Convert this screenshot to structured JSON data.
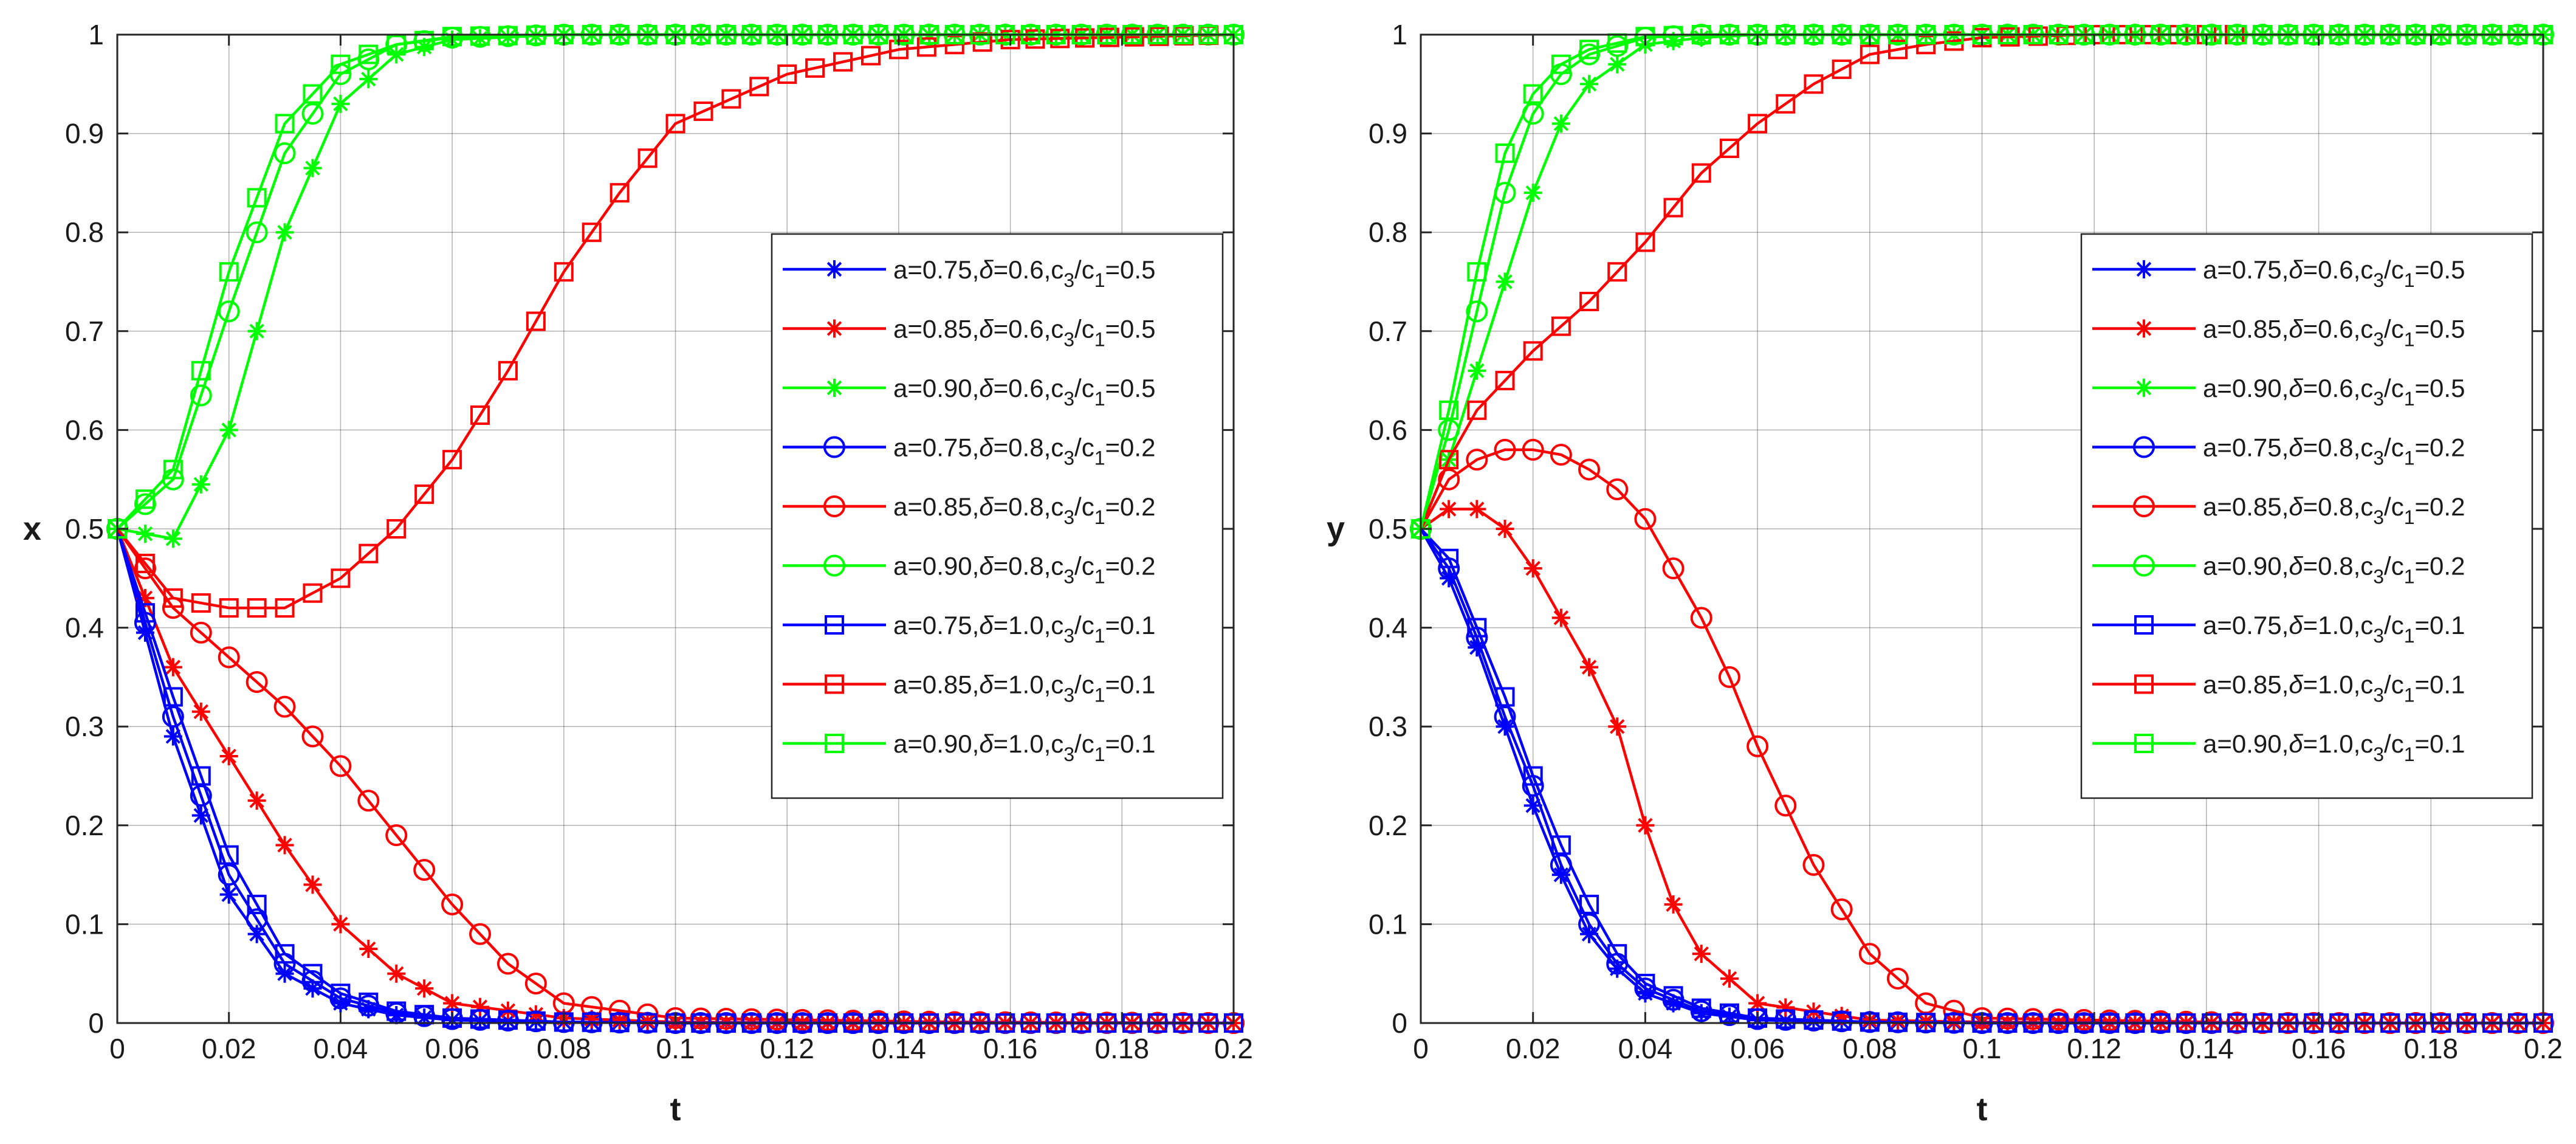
{
  "chart_data": [
    {
      "type": "line",
      "title": "",
      "xlabel": "t",
      "ylabel": "x",
      "xlim": [
        0,
        0.2
      ],
      "ylim": [
        0,
        1
      ],
      "xticks": [
        0,
        0.02,
        0.04,
        0.06,
        0.08,
        0.1,
        0.12,
        0.14,
        0.16,
        0.18,
        0.2
      ],
      "yticks": [
        0,
        0.1,
        0.2,
        0.3,
        0.4,
        0.5,
        0.6,
        0.7,
        0.8,
        0.9,
        1
      ],
      "xtick_labels": [
        "0",
        "0.02",
        "0.04",
        "0.06",
        "0.08",
        "0.1",
        "0.12",
        "0.14",
        "0.16",
        "0.18",
        "0.2"
      ],
      "ytick_labels": [
        "0",
        "0.1",
        "0.2",
        "0.3",
        "0.4",
        "0.5",
        "0.6",
        "0.7",
        "0.8",
        "0.9",
        "1"
      ],
      "grid": true,
      "legend_position": "middle-right",
      "series": [
        {
          "name": "a=0.75,δ=0.6,c3/c1=0.5",
          "a": "0.75",
          "delta": "0.6",
          "ratio": "0.5",
          "color": "#0000ff",
          "marker": "star",
          "x": [
            0,
            0.01,
            0.02,
            0.03,
            0.04,
            0.05,
            0.06,
            0.08,
            0.1,
            0.15,
            0.2
          ],
          "y": [
            0.5,
            0.29,
            0.13,
            0.05,
            0.02,
            0.008,
            0.003,
            0.001,
            0,
            0,
            0
          ]
        },
        {
          "name": "a=0.85,δ=0.6,c3/c1=0.5",
          "a": "0.85",
          "delta": "0.6",
          "ratio": "0.5",
          "color": "#ff0000",
          "marker": "star",
          "x": [
            0,
            0.01,
            0.02,
            0.03,
            0.04,
            0.05,
            0.06,
            0.08,
            0.1,
            0.15,
            0.2
          ],
          "y": [
            0.5,
            0.36,
            0.27,
            0.18,
            0.1,
            0.05,
            0.02,
            0.005,
            0.001,
            0,
            0
          ]
        },
        {
          "name": "a=0.90,δ=0.6,c3/c1=0.5",
          "a": "0.90",
          "delta": "0.6",
          "ratio": "0.5",
          "color": "#00ff00",
          "marker": "star",
          "x": [
            0,
            0.01,
            0.02,
            0.03,
            0.04,
            0.05,
            0.06,
            0.08,
            0.1,
            0.15,
            0.2
          ],
          "y": [
            0.5,
            0.49,
            0.6,
            0.8,
            0.93,
            0.98,
            0.995,
            1,
            1,
            1,
            1
          ]
        },
        {
          "name": "a=0.75,δ=0.8,c3/c1=0.2",
          "a": "0.75",
          "delta": "0.8",
          "ratio": "0.2",
          "color": "#0000ff",
          "marker": "circle",
          "x": [
            0,
            0.01,
            0.02,
            0.03,
            0.04,
            0.05,
            0.06,
            0.08,
            0.1,
            0.15,
            0.2
          ],
          "y": [
            0.5,
            0.31,
            0.15,
            0.06,
            0.025,
            0.01,
            0.004,
            0.001,
            0,
            0,
            0
          ]
        },
        {
          "name": "a=0.85,δ=0.8,c3/c1=0.2",
          "a": "0.85",
          "delta": "0.8",
          "ratio": "0.2",
          "color": "#ff0000",
          "marker": "circle",
          "x": [
            0,
            0.01,
            0.02,
            0.03,
            0.04,
            0.05,
            0.06,
            0.07,
            0.08,
            0.1,
            0.15,
            0.2
          ],
          "y": [
            0.5,
            0.42,
            0.37,
            0.32,
            0.26,
            0.19,
            0.12,
            0.06,
            0.02,
            0.005,
            0.001,
            0
          ]
        },
        {
          "name": "a=0.90,δ=0.8,c3/c1=0.2",
          "a": "0.90",
          "delta": "0.8",
          "ratio": "0.2",
          "color": "#00ff00",
          "marker": "circle",
          "x": [
            0,
            0.01,
            0.02,
            0.03,
            0.04,
            0.05,
            0.06,
            0.08,
            0.1,
            0.15,
            0.2
          ],
          "y": [
            0.5,
            0.55,
            0.72,
            0.88,
            0.96,
            0.99,
            0.997,
            1,
            1,
            1,
            1
          ]
        },
        {
          "name": "a=0.75,δ=1.0,c3/c1=0.1",
          "a": "0.75",
          "delta": "1.0",
          "ratio": "0.1",
          "color": "#0000ff",
          "marker": "square",
          "x": [
            0,
            0.01,
            0.02,
            0.03,
            0.04,
            0.05,
            0.06,
            0.08,
            0.1,
            0.15,
            0.2
          ],
          "y": [
            0.5,
            0.33,
            0.17,
            0.07,
            0.03,
            0.012,
            0.005,
            0.001,
            0,
            0,
            0
          ]
        },
        {
          "name": "a=0.85,δ=1.0,c3/c1=0.1",
          "a": "0.85",
          "delta": "1.0",
          "ratio": "0.1",
          "color": "#ff0000",
          "marker": "square",
          "x": [
            0,
            0.01,
            0.02,
            0.03,
            0.04,
            0.05,
            0.06,
            0.07,
            0.08,
            0.09,
            0.1,
            0.12,
            0.14,
            0.16,
            0.2
          ],
          "y": [
            0.5,
            0.43,
            0.42,
            0.42,
            0.45,
            0.5,
            0.57,
            0.66,
            0.76,
            0.84,
            0.91,
            0.96,
            0.985,
            0.995,
            1
          ]
        },
        {
          "name": "a=0.90,δ=1.0,c3/c1=0.1",
          "a": "0.90",
          "delta": "1.0",
          "ratio": "0.1",
          "color": "#00ff00",
          "marker": "square",
          "x": [
            0,
            0.01,
            0.02,
            0.03,
            0.04,
            0.05,
            0.06,
            0.08,
            0.1,
            0.15,
            0.2
          ],
          "y": [
            0.5,
            0.56,
            0.76,
            0.91,
            0.97,
            0.99,
            0.998,
            1,
            1,
            1,
            1
          ]
        }
      ]
    },
    {
      "type": "line",
      "title": "",
      "xlabel": "t",
      "ylabel": "y",
      "xlim": [
        0,
        0.2
      ],
      "ylim": [
        0,
        1
      ],
      "xticks": [
        0,
        0.02,
        0.04,
        0.06,
        0.08,
        0.1,
        0.12,
        0.14,
        0.16,
        0.18,
        0.2
      ],
      "yticks": [
        0,
        0.1,
        0.2,
        0.3,
        0.4,
        0.5,
        0.6,
        0.7,
        0.8,
        0.9,
        1
      ],
      "xtick_labels": [
        "0",
        "0.02",
        "0.04",
        "0.06",
        "0.08",
        "0.1",
        "0.12",
        "0.14",
        "0.16",
        "0.18",
        "0.2"
      ],
      "ytick_labels": [
        "0",
        "0.1",
        "0.2",
        "0.3",
        "0.4",
        "0.5",
        "0.6",
        "0.7",
        "0.8",
        "0.9",
        "1"
      ],
      "grid": true,
      "legend_position": "middle-right",
      "series": [
        {
          "name": "a=0.75,δ=0.6,c3/c1=0.5",
          "a": "0.75",
          "delta": "0.6",
          "ratio": "0.5",
          "color": "#0000ff",
          "marker": "star",
          "x": [
            0,
            0.005,
            0.01,
            0.015,
            0.02,
            0.025,
            0.03,
            0.035,
            0.04,
            0.05,
            0.06,
            0.08,
            0.1,
            0.15,
            0.2
          ],
          "y": [
            0.5,
            0.45,
            0.38,
            0.3,
            0.22,
            0.15,
            0.09,
            0.055,
            0.03,
            0.01,
            0.003,
            0.001,
            0,
            0,
            0
          ]
        },
        {
          "name": "a=0.85,δ=0.6,c3/c1=0.5",
          "a": "0.85",
          "delta": "0.6",
          "ratio": "0.5",
          "color": "#ff0000",
          "marker": "star",
          "x": [
            0,
            0.005,
            0.01,
            0.015,
            0.02,
            0.025,
            0.03,
            0.035,
            0.04,
            0.045,
            0.05,
            0.06,
            0.08,
            0.1,
            0.15,
            0.2
          ],
          "y": [
            0.5,
            0.52,
            0.52,
            0.5,
            0.46,
            0.41,
            0.36,
            0.3,
            0.2,
            0.12,
            0.07,
            0.02,
            0.003,
            0.001,
            0,
            0
          ]
        },
        {
          "name": "a=0.90,δ=0.6,c3/c1=0.5",
          "a": "0.90",
          "delta": "0.6",
          "ratio": "0.5",
          "color": "#00ff00",
          "marker": "star",
          "x": [
            0,
            0.005,
            0.01,
            0.015,
            0.02,
            0.025,
            0.03,
            0.04,
            0.05,
            0.06,
            0.08,
            0.1,
            0.15,
            0.2
          ],
          "y": [
            0.5,
            0.57,
            0.66,
            0.75,
            0.84,
            0.91,
            0.95,
            0.99,
            0.997,
            1,
            1,
            1,
            1,
            1
          ]
        },
        {
          "name": "a=0.75,δ=0.8,c3/c1=0.2",
          "a": "0.75",
          "delta": "0.8",
          "ratio": "0.2",
          "color": "#0000ff",
          "marker": "circle",
          "x": [
            0,
            0.005,
            0.01,
            0.015,
            0.02,
            0.025,
            0.03,
            0.035,
            0.04,
            0.05,
            0.06,
            0.08,
            0.1,
            0.15,
            0.2
          ],
          "y": [
            0.5,
            0.46,
            0.39,
            0.31,
            0.24,
            0.16,
            0.1,
            0.06,
            0.035,
            0.012,
            0.004,
            0.001,
            0,
            0,
            0
          ]
        },
        {
          "name": "a=0.85,δ=0.8,c3/c1=0.2",
          "a": "0.85",
          "delta": "0.8",
          "ratio": "0.2",
          "color": "#ff0000",
          "marker": "circle",
          "x": [
            0,
            0.005,
            0.01,
            0.015,
            0.02,
            0.025,
            0.03,
            0.035,
            0.04,
            0.045,
            0.05,
            0.055,
            0.06,
            0.065,
            0.07,
            0.08,
            0.09,
            0.1,
            0.15,
            0.2
          ],
          "y": [
            0.5,
            0.55,
            0.57,
            0.58,
            0.58,
            0.575,
            0.56,
            0.54,
            0.51,
            0.46,
            0.41,
            0.35,
            0.28,
            0.22,
            0.16,
            0.07,
            0.02,
            0.005,
            0,
            0
          ]
        },
        {
          "name": "a=0.90,δ=0.8,c3/c1=0.2",
          "a": "0.90",
          "delta": "0.8",
          "ratio": "0.2",
          "color": "#00ff00",
          "marker": "circle",
          "x": [
            0,
            0.005,
            0.01,
            0.015,
            0.02,
            0.025,
            0.03,
            0.04,
            0.05,
            0.06,
            0.08,
            0.1,
            0.15,
            0.2
          ],
          "y": [
            0.5,
            0.6,
            0.72,
            0.84,
            0.92,
            0.96,
            0.98,
            0.997,
            1,
            1,
            1,
            1,
            1,
            1
          ]
        },
        {
          "name": "a=0.75,δ=1.0,c3/c1=0.1",
          "a": "0.75",
          "delta": "1.0",
          "ratio": "0.1",
          "color": "#0000ff",
          "marker": "square",
          "x": [
            0,
            0.005,
            0.01,
            0.015,
            0.02,
            0.025,
            0.03,
            0.035,
            0.04,
            0.05,
            0.06,
            0.08,
            0.1,
            0.15,
            0.2
          ],
          "y": [
            0.5,
            0.47,
            0.4,
            0.33,
            0.25,
            0.18,
            0.12,
            0.07,
            0.04,
            0.015,
            0.005,
            0.001,
            0,
            0,
            0
          ]
        },
        {
          "name": "a=0.85,δ=1.0,c3/c1=0.1",
          "a": "0.85",
          "delta": "1.0",
          "ratio": "0.1",
          "color": "#ff0000",
          "marker": "square",
          "x": [
            0,
            0.005,
            0.01,
            0.02,
            0.03,
            0.04,
            0.05,
            0.06,
            0.07,
            0.08,
            0.09,
            0.1,
            0.12,
            0.15,
            0.2
          ],
          "y": [
            0.5,
            0.57,
            0.62,
            0.68,
            0.73,
            0.79,
            0.86,
            0.91,
            0.95,
            0.98,
            0.99,
            0.997,
            1,
            1,
            1
          ]
        },
        {
          "name": "a=0.90,δ=1.0,c3/c1=0.1",
          "a": "0.90",
          "delta": "1.0",
          "ratio": "0.1",
          "color": "#00ff00",
          "marker": "square",
          "x": [
            0,
            0.005,
            0.01,
            0.015,
            0.02,
            0.025,
            0.03,
            0.04,
            0.05,
            0.06,
            0.08,
            0.1,
            0.15,
            0.2
          ],
          "y": [
            0.5,
            0.62,
            0.76,
            0.88,
            0.94,
            0.97,
            0.985,
            0.998,
            1,
            1,
            1,
            1,
            1,
            1
          ]
        }
      ]
    }
  ]
}
